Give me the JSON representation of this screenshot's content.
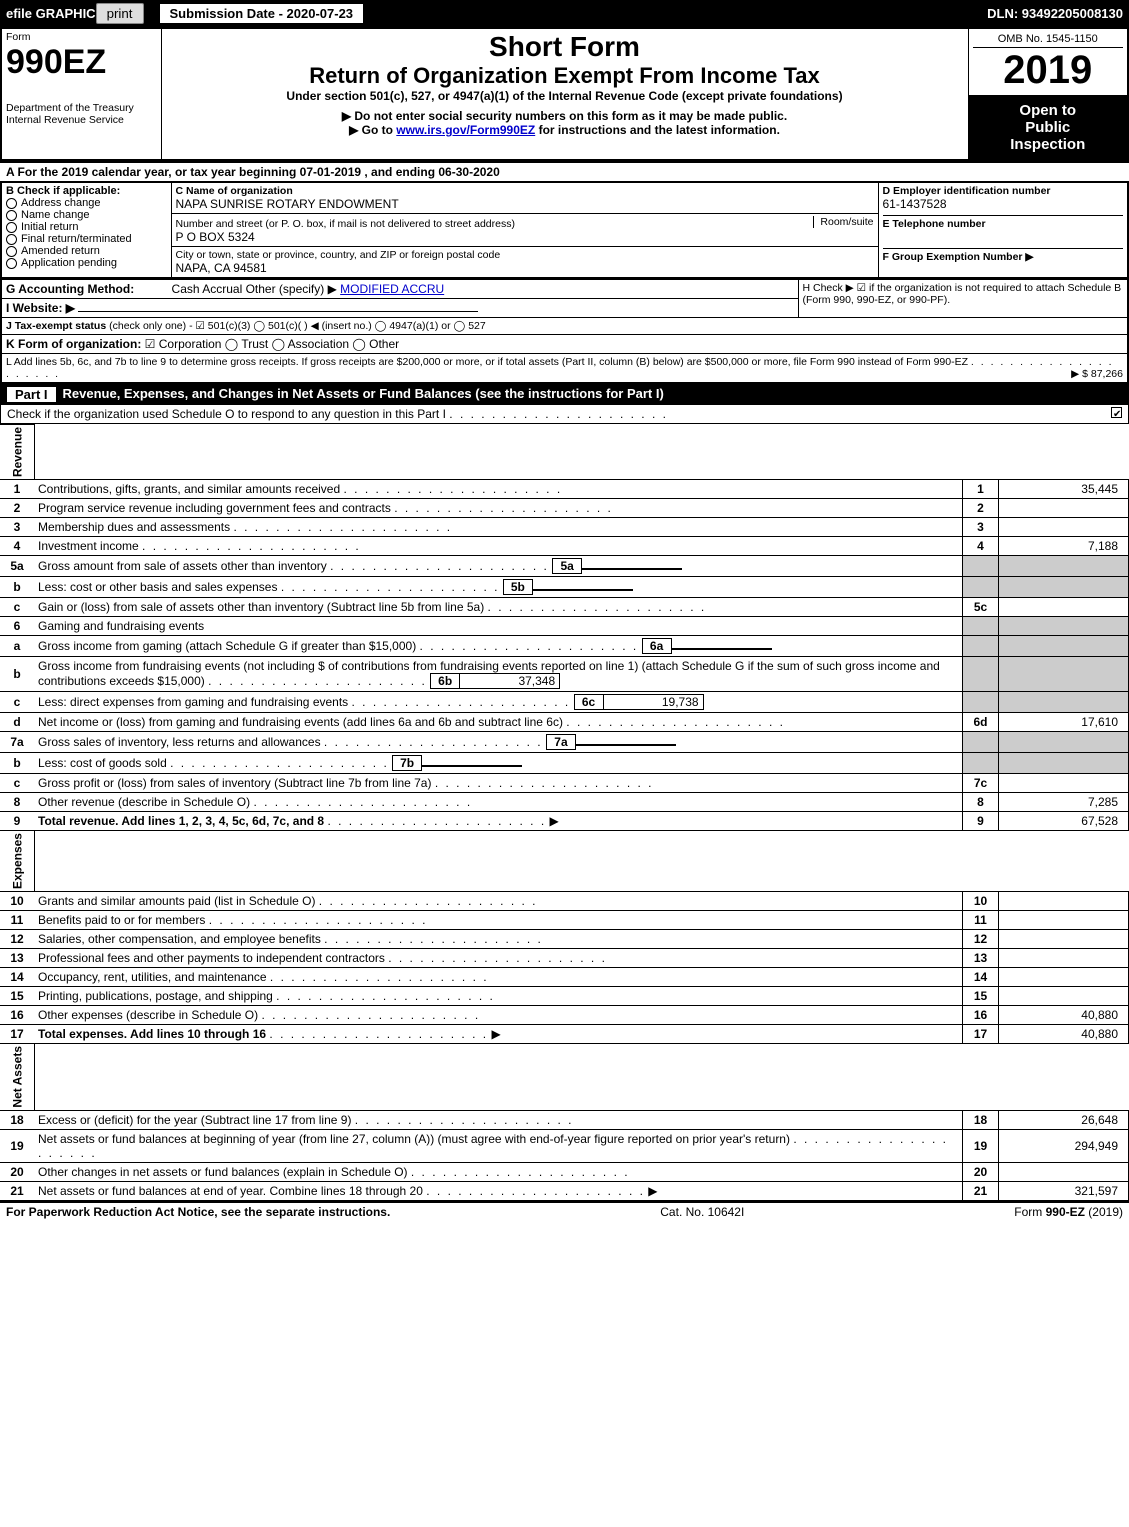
{
  "top": {
    "efile": "efile GRAPHIC",
    "print": "print",
    "submission_label": "Submission Date - 2020-07-23",
    "dln_label": "DLN: 93492205008130"
  },
  "header": {
    "form_word": "Form",
    "form_name": "990EZ",
    "dept1": "Department of the Treasury",
    "dept2": "Internal Revenue Service",
    "short_form": "Short Form",
    "main_title": "Return of Organization Exempt From Income Tax",
    "sub_title": "Under section 501(c), 527, or 4947(a)(1) of the Internal Revenue Code (except private foundations)",
    "warn": "▶ Do not enter social security numbers on this form as it may be made public.",
    "link_pre": "▶ Go to ",
    "link": "www.irs.gov/Form990EZ",
    "link_post": " for instructions and the latest information.",
    "omb": "OMB No. 1545-1150",
    "year": "2019",
    "open1": "Open to",
    "open2": "Public",
    "open3": "Inspection"
  },
  "period": "A  For the 2019 calendar year, or tax year beginning 07-01-2019 , and ending 06-30-2020",
  "boxB": {
    "title": "B  Check if applicable:",
    "items": [
      "Address change",
      "Name change",
      "Initial return",
      "Final return/terminated",
      "Amended return",
      "Application pending"
    ]
  },
  "boxC": {
    "label_c": "C Name of organization",
    "org": "NAPA SUNRISE ROTARY ENDOWMENT",
    "addr_label": "Number and street (or P. O. box, if mail is not delivered to street address)",
    "addr": "P O BOX 5324",
    "room_label": "Room/suite",
    "city_label": "City or town, state or province, country, and ZIP or foreign postal code",
    "city": "NAPA, CA  94581"
  },
  "boxD": {
    "label": "D Employer identification number",
    "value": "61-1437528"
  },
  "boxE": {
    "label": "E Telephone number"
  },
  "boxF": {
    "label": "F Group Exemption Number  ▶"
  },
  "lineG": {
    "label": "G Accounting Method:",
    "opts": "Cash   Accrual   Other (specify) ▶",
    "value": "MODIFIED ACCRU"
  },
  "lineH": {
    "text": "H  Check ▶  ☑  if the organization is not required to attach Schedule B (Form 990, 990-EZ, or 990-PF)."
  },
  "lineI": {
    "label": "I Website: ▶"
  },
  "lineJ": {
    "label": "J Tax-exempt status",
    "rest": "(check only one) - ☑ 501(c)(3)  ◯ 501(c)(  ) ◀ (insert no.)  ◯ 4947(a)(1) or  ◯ 527"
  },
  "lineK": {
    "label": "K Form of organization:",
    "rest": "☑ Corporation   ◯ Trust   ◯ Association   ◯ Other"
  },
  "lineL": {
    "text": "L Add lines 5b, 6c, and 7b to line 9 to determine gross receipts. If gross receipts are $200,000 or more, or if total assets (Part II, column (B) below) are $500,000 or more, file Form 990 instead of Form 990-EZ",
    "amount": "▶ $ 87,266"
  },
  "part1_title": "Revenue, Expenses, and Changes in Net Assets or Fund Balances (see the instructions for Part I)",
  "part1_sub": "Check if the organization used Schedule O to respond to any question in this Part I",
  "sections": {
    "revenue": "Revenue",
    "expenses": "Expenses",
    "netassets": "Net Assets"
  },
  "lines": [
    {
      "n": "1",
      "d": "Contributions, gifts, grants, and similar amounts received",
      "r": "1",
      "a": "35,445"
    },
    {
      "n": "2",
      "d": "Program service revenue including government fees and contracts",
      "r": "2",
      "a": ""
    },
    {
      "n": "3",
      "d": "Membership dues and assessments",
      "r": "3",
      "a": ""
    },
    {
      "n": "4",
      "d": "Investment income",
      "r": "4",
      "a": "7,188"
    },
    {
      "n": "5a",
      "d": "Gross amount from sale of assets other than inventory",
      "ib": "5a",
      "iv": ""
    },
    {
      "n": "b",
      "d": "Less: cost or other basis and sales expenses",
      "ib": "5b",
      "iv": ""
    },
    {
      "n": "c",
      "d": "Gain or (loss) from sale of assets other than inventory (Subtract line 5b from line 5a)",
      "r": "5c",
      "a": ""
    },
    {
      "n": "6",
      "d": "Gaming and fundraising events"
    },
    {
      "n": "a",
      "d": "Gross income from gaming (attach Schedule G if greater than $15,000)",
      "ib": "6a",
      "iv": ""
    },
    {
      "n": "b",
      "d": "Gross income from fundraising events (not including $                    of contributions from fundraising events reported on line 1) (attach Schedule G if the sum of such gross income and contributions exceeds $15,000)",
      "ib": "6b",
      "iv": "37,348"
    },
    {
      "n": "c",
      "d": "Less: direct expenses from gaming and fundraising events",
      "ib": "6c",
      "iv": "19,738"
    },
    {
      "n": "d",
      "d": "Net income or (loss) from gaming and fundraising events (add lines 6a and 6b and subtract line 6c)",
      "r": "6d",
      "a": "17,610"
    },
    {
      "n": "7a",
      "d": "Gross sales of inventory, less returns and allowances",
      "ib": "7a",
      "iv": ""
    },
    {
      "n": "b",
      "d": "Less: cost of goods sold",
      "ib": "7b",
      "iv": ""
    },
    {
      "n": "c",
      "d": "Gross profit or (loss) from sales of inventory (Subtract line 7b from line 7a)",
      "r": "7c",
      "a": ""
    },
    {
      "n": "8",
      "d": "Other revenue (describe in Schedule O)",
      "r": "8",
      "a": "7,285"
    },
    {
      "n": "9",
      "d": "Total revenue. Add lines 1, 2, 3, 4, 5c, 6d, 7c, and 8",
      "r": "9",
      "a": "67,528",
      "bold": true,
      "arrow": true
    }
  ],
  "exp_lines": [
    {
      "n": "10",
      "d": "Grants and similar amounts paid (list in Schedule O)",
      "r": "10",
      "a": ""
    },
    {
      "n": "11",
      "d": "Benefits paid to or for members",
      "r": "11",
      "a": ""
    },
    {
      "n": "12",
      "d": "Salaries, other compensation, and employee benefits",
      "r": "12",
      "a": ""
    },
    {
      "n": "13",
      "d": "Professional fees and other payments to independent contractors",
      "r": "13",
      "a": ""
    },
    {
      "n": "14",
      "d": "Occupancy, rent, utilities, and maintenance",
      "r": "14",
      "a": ""
    },
    {
      "n": "15",
      "d": "Printing, publications, postage, and shipping",
      "r": "15",
      "a": ""
    },
    {
      "n": "16",
      "d": "Other expenses (describe in Schedule O)",
      "r": "16",
      "a": "40,880"
    },
    {
      "n": "17",
      "d": "Total expenses. Add lines 10 through 16",
      "r": "17",
      "a": "40,880",
      "bold": true,
      "arrow": true
    }
  ],
  "na_lines": [
    {
      "n": "18",
      "d": "Excess or (deficit) for the year (Subtract line 17 from line 9)",
      "r": "18",
      "a": "26,648"
    },
    {
      "n": "19",
      "d": "Net assets or fund balances at beginning of year (from line 27, column (A)) (must agree with end-of-year figure reported on prior year's return)",
      "r": "19",
      "a": "294,949"
    },
    {
      "n": "20",
      "d": "Other changes in net assets or fund balances (explain in Schedule O)",
      "r": "20",
      "a": ""
    },
    {
      "n": "21",
      "d": "Net assets or fund balances at end of year. Combine lines 18 through 20",
      "r": "21",
      "a": "321,597",
      "arrow": true
    }
  ],
  "footer": {
    "left": "For Paperwork Reduction Act Notice, see the separate instructions.",
    "mid": "Cat. No. 10642I",
    "right": "Form 990-EZ (2019)"
  },
  "colors": {
    "black": "#000000",
    "white": "#ffffff",
    "grey": "#cccccc",
    "link": "#0000cc"
  }
}
